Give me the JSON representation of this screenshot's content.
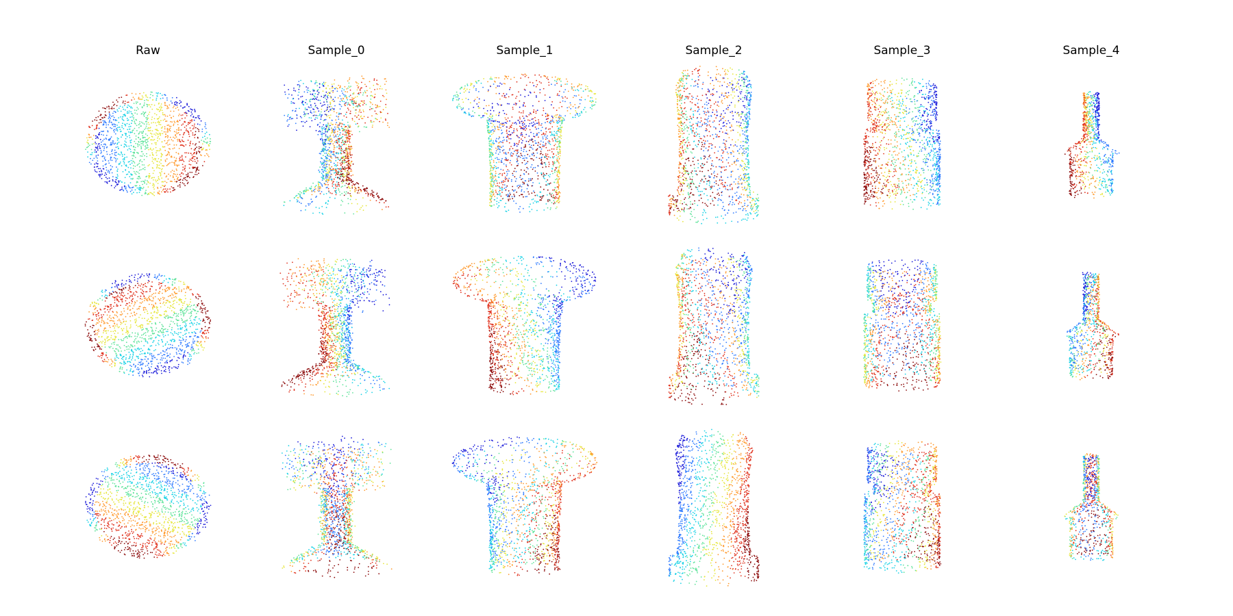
{
  "figure": {
    "columns": [
      {
        "title": "Raw",
        "shape": "sphere"
      },
      {
        "title": "Sample_0",
        "shape": "noisy-vase"
      },
      {
        "title": "Sample_1",
        "shape": "mushroom-cup"
      },
      {
        "title": "Sample_2",
        "shape": "tall-vase"
      },
      {
        "title": "Sample_3",
        "shape": "cork-jar"
      },
      {
        "title": "Sample_4",
        "shape": "bottle"
      }
    ],
    "rows": 3,
    "colormap": [
      "#1a1ad9",
      "#2f7bff",
      "#19d2e6",
      "#5ee39a",
      "#e6e63a",
      "#ff9a2e",
      "#e0331f",
      "#8b0a0a",
      "#e89aa8"
    ]
  }
}
